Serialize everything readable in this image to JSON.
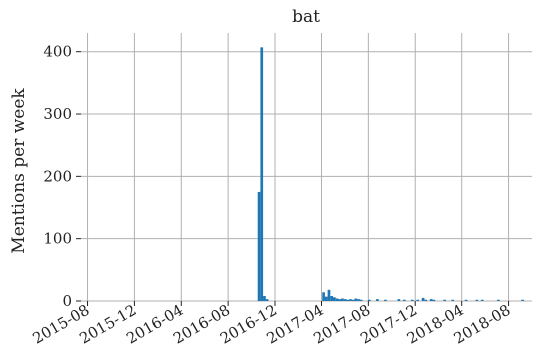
{
  "chart_data": {
    "type": "bar",
    "title": "bat",
    "xlabel": "",
    "ylabel": "Mentions per week",
    "x_axis_kind": "date",
    "xlim": [
      "2015-07-15",
      "2018-10-01"
    ],
    "ylim": [
      0,
      430
    ],
    "grid": true,
    "bar_color": "#1f77b4",
    "grid_color": "#b0b0b0",
    "y_ticks": [
      0,
      100,
      200,
      300,
      400
    ],
    "x_ticks": [
      {
        "date": "2015-08-01",
        "label": "2015-08"
      },
      {
        "date": "2015-12-01",
        "label": "2015-12"
      },
      {
        "date": "2016-04-01",
        "label": "2016-04"
      },
      {
        "date": "2016-08-01",
        "label": "2016-08"
      },
      {
        "date": "2016-12-01",
        "label": "2016-12"
      },
      {
        "date": "2017-04-01",
        "label": "2017-04"
      },
      {
        "date": "2017-08-01",
        "label": "2017-08"
      },
      {
        "date": "2017-12-01",
        "label": "2017-12"
      },
      {
        "date": "2018-04-01",
        "label": "2018-04"
      },
      {
        "date": "2018-08-01",
        "label": "2018-08"
      }
    ],
    "weekly_mentions": [
      {
        "week": "2016-10-17",
        "value": 175
      },
      {
        "week": "2016-10-24",
        "value": 407
      },
      {
        "week": "2016-10-31",
        "value": 8
      },
      {
        "week": "2016-11-07",
        "value": 3
      },
      {
        "week": "2017-04-03",
        "value": 14
      },
      {
        "week": "2017-04-10",
        "value": 7
      },
      {
        "week": "2017-04-17",
        "value": 18
      },
      {
        "week": "2017-04-24",
        "value": 8
      },
      {
        "week": "2017-05-01",
        "value": 6
      },
      {
        "week": "2017-05-08",
        "value": 4
      },
      {
        "week": "2017-05-15",
        "value": 3
      },
      {
        "week": "2017-05-22",
        "value": 4
      },
      {
        "week": "2017-05-29",
        "value": 3
      },
      {
        "week": "2017-06-05",
        "value": 2
      },
      {
        "week": "2017-06-12",
        "value": 3
      },
      {
        "week": "2017-06-19",
        "value": 2
      },
      {
        "week": "2017-06-26",
        "value": 4
      },
      {
        "week": "2017-07-03",
        "value": 3
      },
      {
        "week": "2017-07-10",
        "value": 2
      },
      {
        "week": "2017-07-31",
        "value": 2
      },
      {
        "week": "2017-08-21",
        "value": 3
      },
      {
        "week": "2017-09-11",
        "value": 2
      },
      {
        "week": "2017-10-16",
        "value": 3
      },
      {
        "week": "2017-10-30",
        "value": 2
      },
      {
        "week": "2017-11-20",
        "value": 2
      },
      {
        "week": "2017-12-04",
        "value": 2
      },
      {
        "week": "2017-12-18",
        "value": 5
      },
      {
        "week": "2017-12-25",
        "value": 2
      },
      {
        "week": "2018-01-08",
        "value": 3
      },
      {
        "week": "2018-01-15",
        "value": 2
      },
      {
        "week": "2018-02-12",
        "value": 2
      },
      {
        "week": "2018-03-05",
        "value": 2
      },
      {
        "week": "2018-04-09",
        "value": 2
      },
      {
        "week": "2018-05-07",
        "value": 2
      },
      {
        "week": "2018-05-21",
        "value": 2
      },
      {
        "week": "2018-07-02",
        "value": 2
      },
      {
        "week": "2018-09-03",
        "value": 2
      }
    ]
  }
}
